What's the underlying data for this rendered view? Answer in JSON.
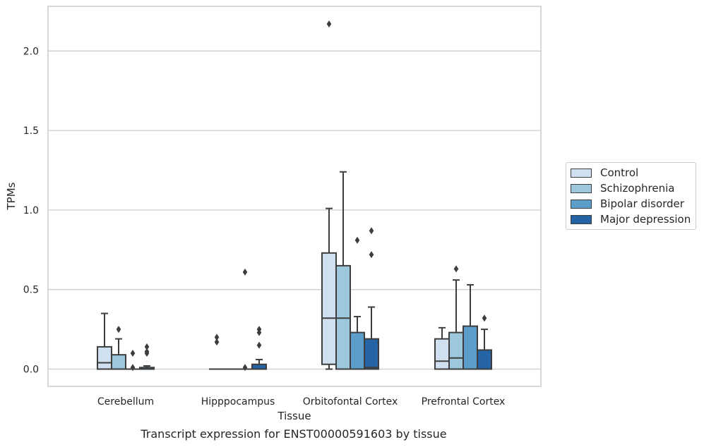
{
  "caption": "Transcript expression for ENST00000591603 by tissue",
  "colors": {
    "series": [
      "#d1e0f1",
      "#9dc7dd",
      "#5a9ec9",
      "#2463a4"
    ],
    "grid": "#cccccc",
    "frame": "#cccccc",
    "stroke": "#3d3d3d"
  },
  "chart_data": {
    "type": "box",
    "title": "",
    "xlabel": "Tissue",
    "ylabel": "TPMs",
    "ylim": [
      -0.1,
      2.28
    ],
    "yticks": [
      0.0,
      0.5,
      1.0,
      1.5,
      2.0
    ],
    "ytick_labels": [
      "0.0",
      "0.5",
      "1.0",
      "1.5",
      "2.0"
    ],
    "grid": "horizontal",
    "legend_position": "right",
    "categories": [
      "Cerebellum",
      "Hipppocampus",
      "Orbitofontal Cortex",
      "Prefrontal Cortex"
    ],
    "series": [
      {
        "name": "Control",
        "boxes": [
          {
            "whislo": 0.0,
            "q1": 0.0,
            "med": 0.04,
            "q3": 0.14,
            "whishi": 0.35,
            "fliers": []
          },
          {
            "whislo": 0.0,
            "q1": 0.0,
            "med": 0.0,
            "q3": 0.0,
            "whishi": 0.0,
            "fliers": [
              0.17,
              0.2
            ]
          },
          {
            "whislo": 0.0,
            "q1": 0.03,
            "med": 0.32,
            "q3": 0.73,
            "whishi": 1.01,
            "fliers": [
              2.17
            ]
          },
          {
            "whislo": 0.0,
            "q1": 0.0,
            "med": 0.05,
            "q3": 0.19,
            "whishi": 0.26,
            "fliers": []
          }
        ]
      },
      {
        "name": "Schizophrenia",
        "boxes": [
          {
            "whislo": 0.0,
            "q1": 0.0,
            "med": 0.0,
            "q3": 0.09,
            "whishi": 0.19,
            "fliers": [
              0.25
            ]
          },
          {
            "whislo": 0.0,
            "q1": 0.0,
            "med": 0.0,
            "q3": 0.0,
            "whishi": 0.0,
            "fliers": []
          },
          {
            "whislo": 0.0,
            "q1": 0.0,
            "med": 0.32,
            "q3": 0.65,
            "whishi": 1.24,
            "fliers": []
          },
          {
            "whislo": 0.0,
            "q1": 0.0,
            "med": 0.07,
            "q3": 0.23,
            "whishi": 0.56,
            "fliers": [
              0.63
            ]
          }
        ]
      },
      {
        "name": "Bipolar disorder",
        "boxes": [
          {
            "whislo": 0.0,
            "q1": 0.0,
            "med": 0.0,
            "q3": 0.0,
            "whishi": 0.0,
            "fliers": [
              0.01,
              0.1
            ]
          },
          {
            "whislo": 0.0,
            "q1": 0.0,
            "med": 0.0,
            "q3": 0.0,
            "whishi": 0.0,
            "fliers": [
              0.01,
              0.61
            ]
          },
          {
            "whislo": 0.0,
            "q1": 0.0,
            "med": 0.0,
            "q3": 0.23,
            "whishi": 0.33,
            "fliers": [
              0.81
            ]
          },
          {
            "whislo": 0.0,
            "q1": 0.0,
            "med": 0.0,
            "q3": 0.27,
            "whishi": 0.53,
            "fliers": []
          }
        ]
      },
      {
        "name": "Major depression",
        "boxes": [
          {
            "whislo": 0.0,
            "q1": 0.0,
            "med": 0.0,
            "q3": 0.01,
            "whishi": 0.02,
            "fliers": [
              0.1,
              0.11,
              0.14
            ]
          },
          {
            "whislo": 0.0,
            "q1": 0.0,
            "med": 0.0,
            "q3": 0.03,
            "whishi": 0.06,
            "fliers": [
              0.15,
              0.23,
              0.25
            ]
          },
          {
            "whislo": 0.0,
            "q1": 0.0,
            "med": 0.01,
            "q3": 0.19,
            "whishi": 0.39,
            "fliers": [
              0.72,
              0.87
            ]
          },
          {
            "whislo": 0.0,
            "q1": 0.0,
            "med": 0.0,
            "q3": 0.12,
            "whishi": 0.25,
            "fliers": [
              0.32
            ]
          }
        ]
      }
    ]
  }
}
